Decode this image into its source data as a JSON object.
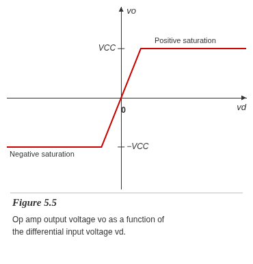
{
  "chart_data": {
    "type": "line",
    "title": "Figure 5.5",
    "subtitle": [
      "Op amp output voltage vo as a function of",
      "the differential input voltage vd."
    ],
    "x_label": "vd",
    "y_label": "vo",
    "x": [
      -3.2,
      -0.55,
      0.55,
      3.5
    ],
    "values": [
      -1.0,
      -1.0,
      1.0,
      1.0
    ],
    "color": "#cc0000",
    "xlim": [
      -3.2,
      3.5
    ],
    "ylim": [
      -1.85,
      1.85
    ],
    "xticks": [
      0
    ],
    "yticks": [
      {
        "value": -1.0,
        "label": "−VCC"
      },
      {
        "value": 1.0,
        "label": "VCC"
      }
    ],
    "annotations": [
      "Positive saturation",
      "Negative saturation"
    ],
    "grid": false
  }
}
